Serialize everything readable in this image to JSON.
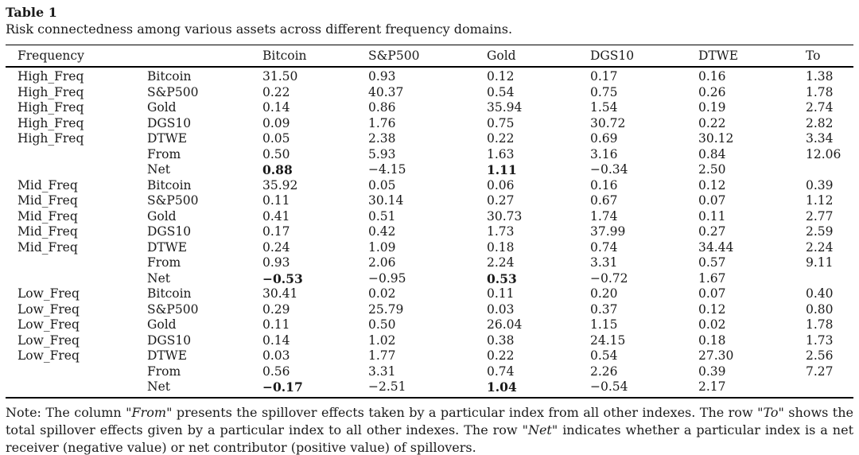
{
  "page": {
    "title": "Table 1",
    "subtitle": "Risk connectedness among various assets across different frequency domains."
  },
  "colors": {
    "text": "#1a1a1a",
    "rule": "#000000",
    "background": "#ffffff"
  },
  "table": {
    "headers": [
      "Frequency",
      "",
      "Bitcoin",
      "S&P500",
      "Gold",
      "DGS10",
      "DTWE",
      "To"
    ],
    "rows": [
      {
        "freq": "High_Freq",
        "label": "Bitcoin",
        "values": [
          "31.50",
          "0.93",
          "0.12",
          "0.17",
          "0.16",
          "1.38"
        ],
        "bold": []
      },
      {
        "freq": "High_Freq",
        "label": "S&P500",
        "values": [
          "0.22",
          "40.37",
          "0.54",
          "0.75",
          "0.26",
          "1.78"
        ],
        "bold": []
      },
      {
        "freq": "High_Freq",
        "label": "Gold",
        "values": [
          "0.14",
          "0.86",
          "35.94",
          "1.54",
          "0.19",
          "2.74"
        ],
        "bold": []
      },
      {
        "freq": "High_Freq",
        "label": "DGS10",
        "values": [
          "0.09",
          "1.76",
          "0.75",
          "30.72",
          "0.22",
          "2.82"
        ],
        "bold": []
      },
      {
        "freq": "High_Freq",
        "label": "DTWE",
        "values": [
          "0.05",
          "2.38",
          "0.22",
          "0.69",
          "30.12",
          "3.34"
        ],
        "bold": []
      },
      {
        "freq": "",
        "label": "From",
        "values": [
          "0.50",
          "5.93",
          "1.63",
          "3.16",
          "0.84",
          "12.06"
        ],
        "bold": []
      },
      {
        "freq": "",
        "label": "Net",
        "values": [
          "0.88",
          "−4.15",
          "1.11",
          "−0.34",
          "2.50",
          ""
        ],
        "bold": [
          0,
          2
        ]
      },
      {
        "freq": "Mid_Freq",
        "label": "Bitcoin",
        "values": [
          "35.92",
          "0.05",
          "0.06",
          "0.16",
          "0.12",
          "0.39"
        ],
        "bold": []
      },
      {
        "freq": "Mid_Freq",
        "label": "S&P500",
        "values": [
          "0.11",
          "30.14",
          "0.27",
          "0.67",
          "0.07",
          "1.12"
        ],
        "bold": []
      },
      {
        "freq": "Mid_Freq",
        "label": "Gold",
        "values": [
          "0.41",
          "0.51",
          "30.73",
          "1.74",
          "0.11",
          "2.77"
        ],
        "bold": []
      },
      {
        "freq": "Mid_Freq",
        "label": "DGS10",
        "values": [
          "0.17",
          "0.42",
          "1.73",
          "37.99",
          "0.27",
          "2.59"
        ],
        "bold": []
      },
      {
        "freq": "Mid_Freq",
        "label": "DTWE",
        "values": [
          "0.24",
          "1.09",
          "0.18",
          "0.74",
          "34.44",
          "2.24"
        ],
        "bold": []
      },
      {
        "freq": "",
        "label": "From",
        "values": [
          "0.93",
          "2.06",
          "2.24",
          "3.31",
          "0.57",
          "9.11"
        ],
        "bold": []
      },
      {
        "freq": "",
        "label": "Net",
        "values": [
          "−0.53",
          "−0.95",
          "0.53",
          "−0.72",
          "1.67",
          ""
        ],
        "bold": [
          0,
          2
        ]
      },
      {
        "freq": "Low_Freq",
        "label": "Bitcoin",
        "values": [
          "30.41",
          "0.02",
          "0.11",
          "0.20",
          "0.07",
          "0.40"
        ],
        "bold": []
      },
      {
        "freq": "Low_Freq",
        "label": "S&P500",
        "values": [
          "0.29",
          "25.79",
          "0.03",
          "0.37",
          "0.12",
          "0.80"
        ],
        "bold": []
      },
      {
        "freq": "Low_Freq",
        "label": "Gold",
        "values": [
          "0.11",
          "0.50",
          "26.04",
          "1.15",
          "0.02",
          "1.78"
        ],
        "bold": []
      },
      {
        "freq": "Low_Freq",
        "label": "DGS10",
        "values": [
          "0.14",
          "1.02",
          "0.38",
          "24.15",
          "0.18",
          "1.73"
        ],
        "bold": []
      },
      {
        "freq": "Low_Freq",
        "label": "DTWE",
        "values": [
          "0.03",
          "1.77",
          "0.22",
          "0.54",
          "27.30",
          "2.56"
        ],
        "bold": []
      },
      {
        "freq": "",
        "label": "From",
        "values": [
          "0.56",
          "3.31",
          "0.74",
          "2.26",
          "0.39",
          "7.27"
        ],
        "bold": []
      },
      {
        "freq": "",
        "label": "Net",
        "values": [
          "−0.17",
          "−2.51",
          "1.04",
          "−0.54",
          "2.17",
          ""
        ],
        "bold": [
          0,
          2
        ]
      }
    ]
  },
  "note_segments": [
    {
      "text": "Note: The column \"",
      "italic": false
    },
    {
      "text": "From\"",
      "italic": true
    },
    {
      "text": " presents the spillover effects taken by a particular index from all other indexes. The row \"",
      "italic": false
    },
    {
      "text": "To\"",
      "italic": true
    },
    {
      "text": " shows the total spillover effects given by a particular index to all other indexes. The row \"",
      "italic": false
    },
    {
      "text": "Net",
      "italic": true
    },
    {
      "text": "\" indicates whether a particular index is a net receiver (negative value) or net contributor (positive value) of spillovers.",
      "italic": false
    }
  ]
}
